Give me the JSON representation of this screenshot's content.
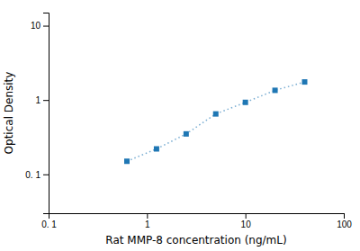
{
  "chart_data": {
    "type": "line",
    "x": [
      0.625,
      1.25,
      2.5,
      5,
      10,
      20,
      40
    ],
    "values": [
      0.15,
      0.22,
      0.35,
      0.65,
      0.93,
      1.35,
      1.75
    ],
    "xlabel": "Rat MMP-8 concentration (ng/mL)",
    "ylabel": "Optical Density",
    "log": true,
    "xlim": [
      0.1,
      100
    ],
    "ylim": [
      0.03,
      15
    ],
    "xticks": [
      {
        "value": 0.1,
        "label": "0. 1"
      },
      1,
      10,
      100
    ],
    "yticks": [
      {
        "value": 0.1,
        "label": "0. 1"
      },
      1,
      10
    ],
    "marker": "square",
    "line_style": "dotted"
  }
}
